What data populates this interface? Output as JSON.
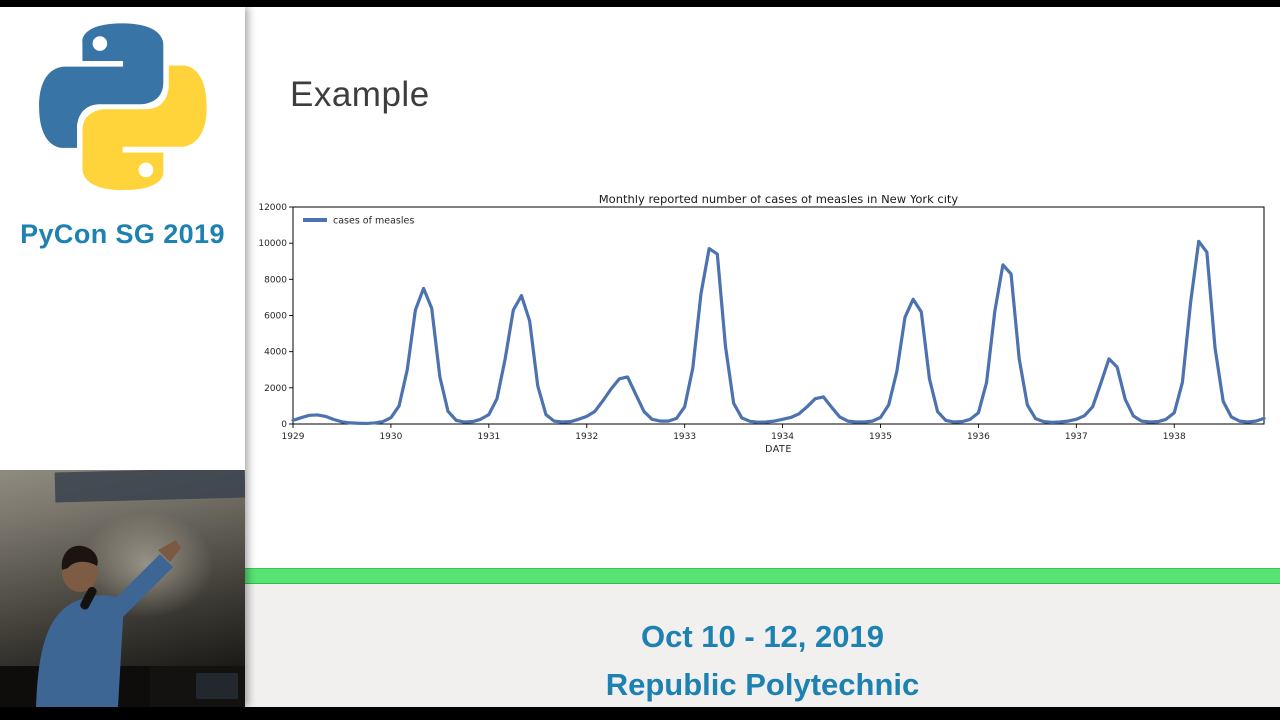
{
  "sidebar": {
    "logo_icon": "python-logo",
    "event_label": "PyCon SG 2019"
  },
  "slide": {
    "title": "Example"
  },
  "footer": {
    "line1": "Oct 10 - 12, 2019",
    "line2": "Republic Polytechnic"
  },
  "colors": {
    "brand_teal": "#1d81b2",
    "series_blue": "#4c72b0",
    "green_bar": "#58e473",
    "python_blue": "#3874a6",
    "python_yellow": "#ffd43b"
  },
  "chart_data": {
    "type": "line",
    "title": "Monthly reported number of cases of measles in New York city",
    "xlabel": "DATE",
    "ylabel": "",
    "legend": [
      "cases of measles"
    ],
    "legend_position": "upper-left",
    "grid": false,
    "x_ticks": [
      1929,
      1930,
      1931,
      1932,
      1933,
      1934,
      1935,
      1936,
      1937,
      1938
    ],
    "y_ticks": [
      0,
      2000,
      4000,
      6000,
      8000,
      10000,
      12000
    ],
    "ylim": [
      0,
      12000
    ],
    "points_per_year": 12,
    "x_range_note": "monthly data Jan 1929 - Dec 1938",
    "series": [
      {
        "name": "cases of measles",
        "color": "#4c72b0",
        "values": [
          200,
          350,
          480,
          500,
          420,
          250,
          120,
          60,
          40,
          30,
          60,
          130,
          350,
          1000,
          3000,
          6300,
          7500,
          6400,
          2600,
          700,
          200,
          110,
          130,
          260,
          520,
          1400,
          3600,
          6300,
          7100,
          5700,
          2100,
          520,
          160,
          110,
          130,
          260,
          420,
          700,
          1300,
          1950,
          2500,
          2600,
          1650,
          700,
          260,
          160,
          160,
          310,
          950,
          3100,
          7200,
          9700,
          9400,
          4300,
          1150,
          340,
          150,
          100,
          110,
          160,
          260,
          360,
          560,
          950,
          1400,
          1500,
          930,
          390,
          160,
          110,
          110,
          160,
          360,
          1050,
          2900,
          5900,
          6900,
          6200,
          2500,
          680,
          200,
          110,
          130,
          260,
          620,
          2300,
          6200,
          8800,
          8300,
          3600,
          1050,
          300,
          130,
          90,
          110,
          160,
          260,
          460,
          950,
          2250,
          3600,
          3150,
          1350,
          440,
          160,
          110,
          130,
          260,
          620,
          2300,
          6700,
          10100,
          9500,
          4200,
          1250,
          390,
          160,
          110,
          160,
          310
        ]
      }
    ]
  }
}
